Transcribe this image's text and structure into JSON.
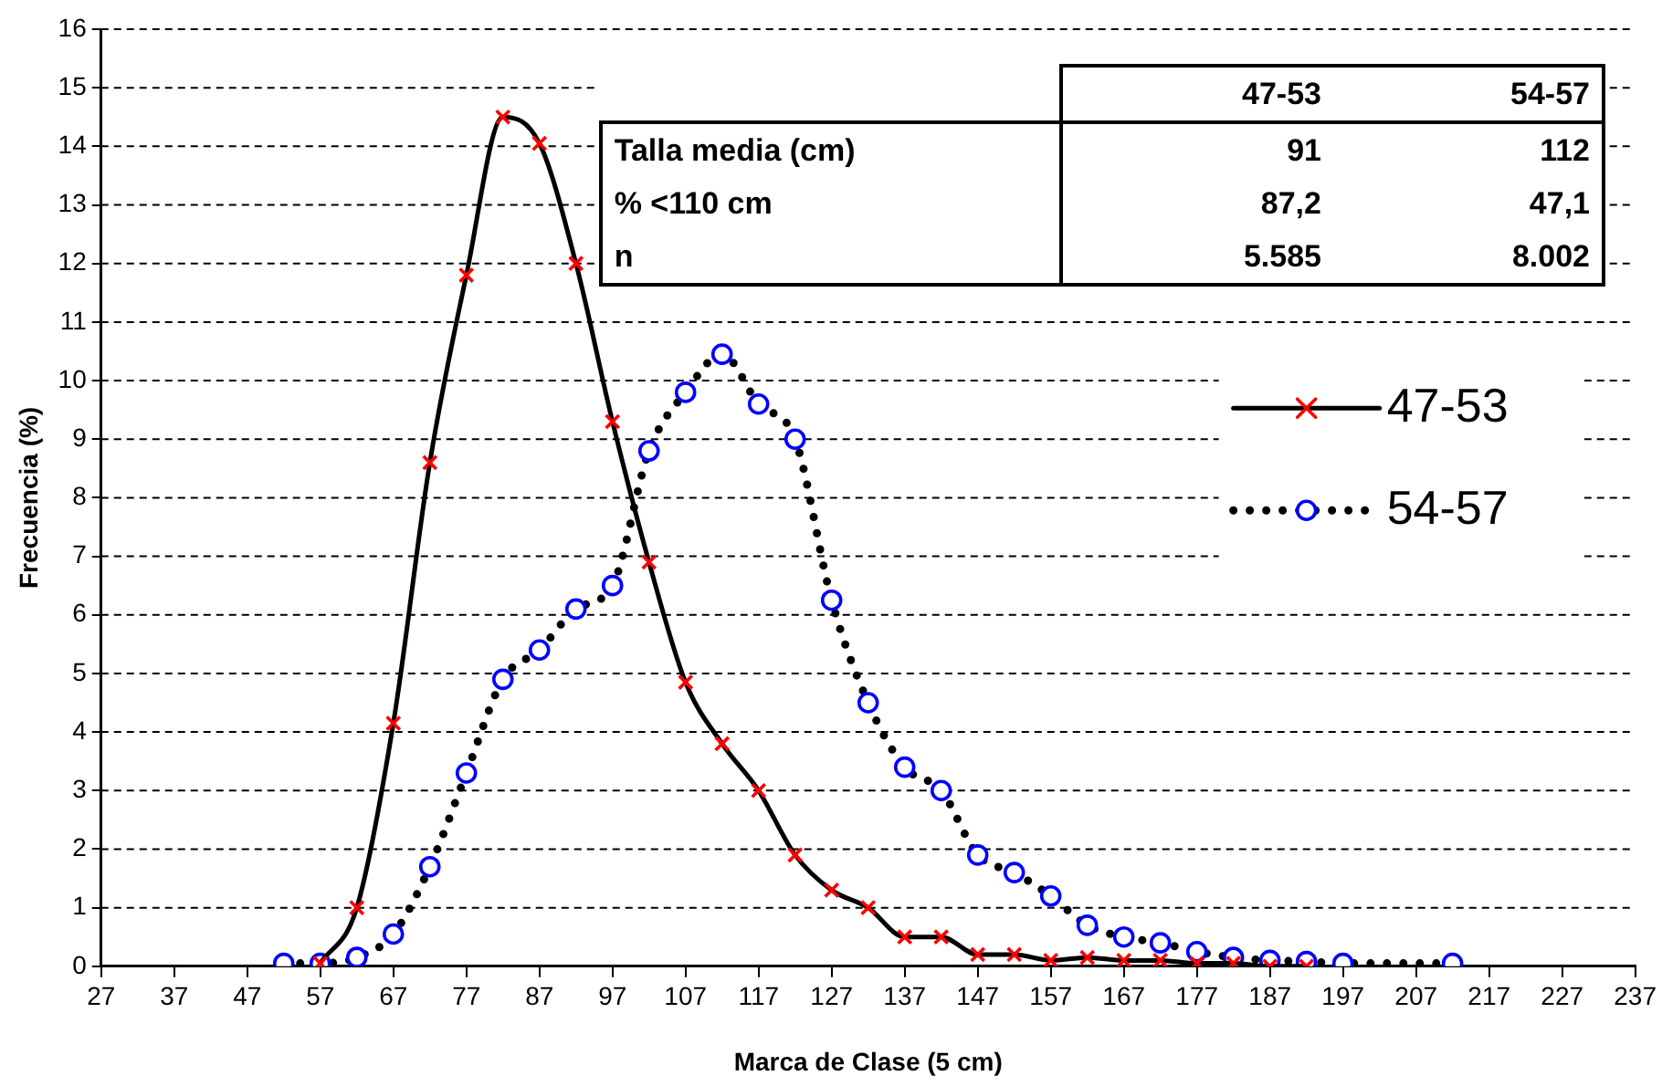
{
  "chart_data": {
    "type": "line",
    "xlabel": "Marca de Clase (5 cm)",
    "ylabel": "Frecuencia (%)",
    "xlim": [
      27,
      237
    ],
    "xticks": [
      27,
      37,
      47,
      57,
      67,
      77,
      87,
      97,
      107,
      117,
      127,
      137,
      147,
      157,
      167,
      177,
      187,
      197,
      207,
      217,
      227,
      237
    ],
    "ylim": [
      0,
      16
    ],
    "yticks": [
      0,
      1,
      2,
      3,
      4,
      5,
      6,
      7,
      8,
      9,
      10,
      11,
      12,
      13,
      14,
      15,
      16
    ],
    "grid": "y",
    "legend": "right",
    "series": [
      {
        "name": "47-53",
        "color": "#ff0000",
        "marker": "cross",
        "line_style": "solid",
        "x": [
          57,
          62,
          67,
          72,
          77,
          82,
          87,
          92,
          97,
          102,
          107,
          112,
          117,
          122,
          127,
          132,
          137,
          142,
          147,
          152,
          157,
          162,
          167,
          172,
          177,
          182,
          187,
          192
        ],
        "values": [
          0.05,
          1.0,
          4.15,
          8.6,
          11.8,
          14.5,
          14.05,
          12.0,
          9.3,
          6.9,
          4.85,
          3.8,
          3.0,
          1.9,
          1.3,
          1.0,
          0.5,
          0.5,
          0.2,
          0.2,
          0.1,
          0.15,
          0.1,
          0.1,
          0.05,
          0.05,
          0.0,
          0.0
        ]
      },
      {
        "name": "54-57",
        "color": "#0000ff",
        "marker": "circle",
        "line_style": "dotted",
        "x": [
          52,
          57,
          62,
          67,
          72,
          77,
          82,
          87,
          92,
          97,
          102,
          107,
          112,
          117,
          122,
          127,
          132,
          137,
          142,
          147,
          152,
          157,
          162,
          167,
          172,
          177,
          182,
          187,
          192,
          197,
          212
        ],
        "values": [
          0.05,
          0.05,
          0.15,
          0.55,
          1.7,
          3.3,
          4.9,
          5.4,
          6.1,
          6.5,
          8.8,
          9.8,
          10.45,
          9.6,
          9.0,
          6.25,
          4.5,
          3.4,
          3.0,
          1.9,
          1.6,
          1.2,
          0.7,
          0.5,
          0.4,
          0.25,
          0.15,
          0.1,
          0.08,
          0.05,
          0.05
        ]
      }
    ],
    "annotations": [
      "47-53",
      "54-57",
      "Talla media (cm)",
      "91",
      "112",
      "% <110 cm",
      "87,2",
      "47,1",
      "n",
      "5.585",
      "8.002"
    ]
  }
}
